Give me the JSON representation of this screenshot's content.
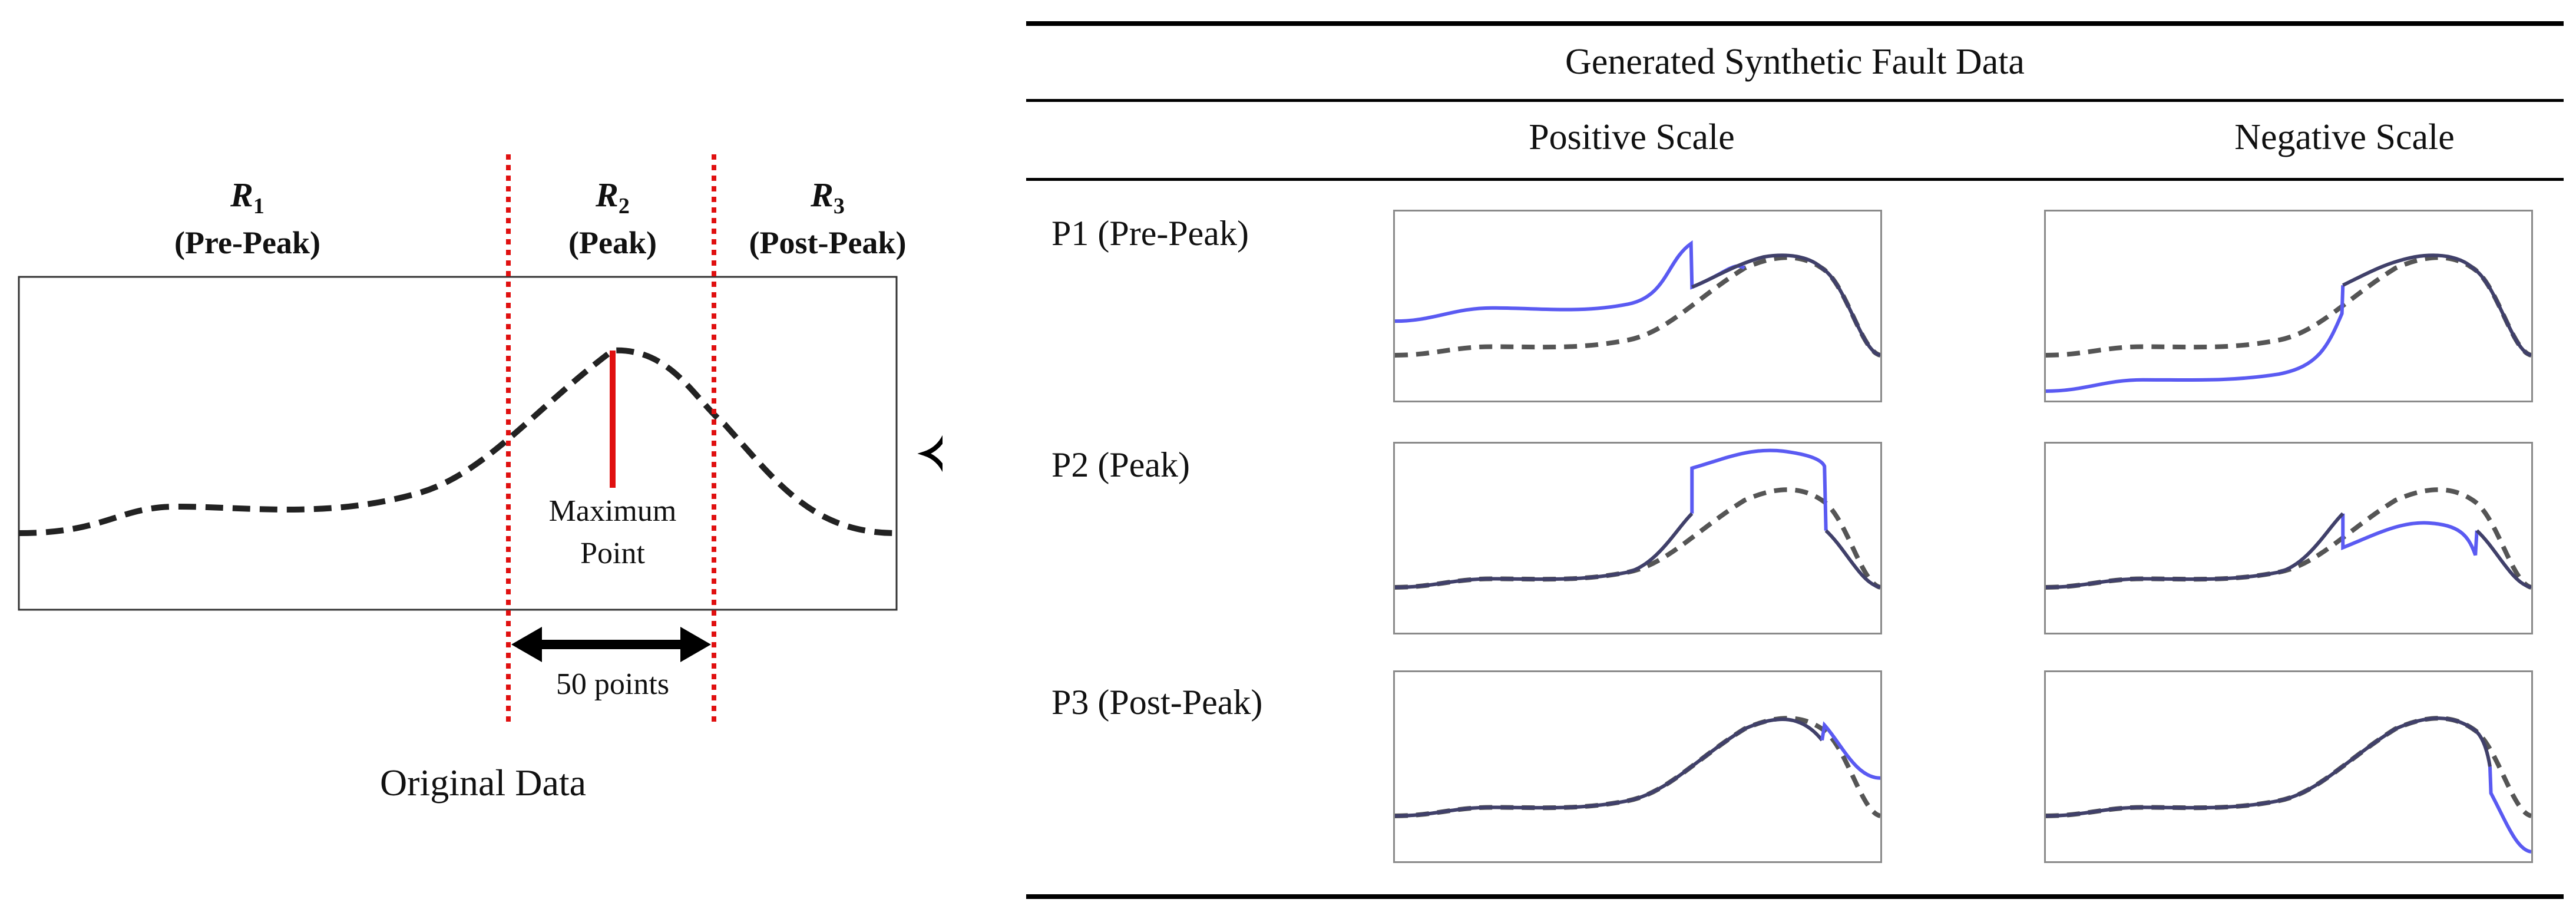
{
  "left_diagram": {
    "regions": [
      {
        "symbol": "R",
        "subscript": "1",
        "name": "(Pre-Peak)"
      },
      {
        "symbol": "R",
        "subscript": "2",
        "name": "(Peak)"
      },
      {
        "symbol": "R",
        "subscript": "3",
        "name": "(Post-Peak)"
      }
    ],
    "max_point_line1": "Maximum",
    "max_point_line2": "Point",
    "window_label": "50 points",
    "caption": "Original Data"
  },
  "table": {
    "title": "Generated Synthetic Fault Data",
    "columns": [
      "Positive Scale",
      "Negative Scale"
    ],
    "rows": [
      "P1 (Pre-Peak)",
      "P2 (Peak)",
      "P3 (Post-Peak)"
    ]
  },
  "colors": {
    "original_curve": "#222222",
    "fault_curve": "#5a5af2",
    "region_divider": "#e01010",
    "max_marker": "#e01010",
    "panel_border": "#8a8a8a"
  }
}
